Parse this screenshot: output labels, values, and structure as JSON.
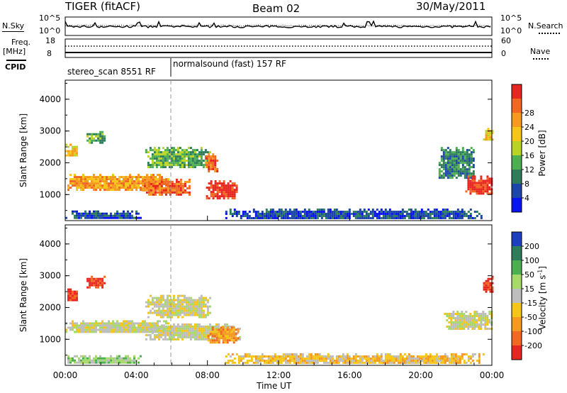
{
  "header": {
    "radar": "TIGER (fitACF)",
    "beam": "Beam 02",
    "date": "30/May/2011"
  },
  "noise_panel": {
    "left_label": "N.Sky",
    "right_label": "N.Search",
    "left_ticks": [
      "10^5",
      "10^0"
    ],
    "right_ticks": [
      "10^5",
      "10^0"
    ]
  },
  "freq_panel": {
    "label_line1": "Freq.",
    "label_line2": "[MHz]",
    "left_ticks": [
      "18",
      "8"
    ],
    "right_ticks": [
      "60",
      "0"
    ],
    "right_label": "Nave"
  },
  "cpid": {
    "label": "CPID",
    "modes": [
      {
        "name": "stereo_scan 8551 RF",
        "start_hour": 0,
        "end_hour": 6.0
      },
      {
        "name": "normalsound (fast) 157 RF",
        "start_hour": 6.0,
        "end_hour": 24
      }
    ]
  },
  "chart_data": [
    {
      "type": "heatmap",
      "parameter": "power",
      "ylabel": "Slant Range [km]",
      "xlabel": "",
      "ylim": [
        180,
        4600
      ],
      "yticks": [
        "1000",
        "2000",
        "3000",
        "4000"
      ],
      "xlim": [
        0,
        24
      ],
      "colorbar": {
        "label": "Power [dB]",
        "ticks": [
          "4",
          "8",
          "12",
          "16",
          "20",
          "24",
          "28"
        ],
        "colors": [
          "#0a14f0",
          "#1c46a8",
          "#2e7d5a",
          "#4caf50",
          "#b9d424",
          "#f5c518",
          "#f59a1e",
          "#f26722",
          "#e6261f"
        ]
      },
      "regions": [
        {
          "t0": 0.0,
          "t1": 5.8,
          "r0": 1150,
          "r1": 1650,
          "level": 6
        },
        {
          "t0": 0.0,
          "t1": 0.7,
          "r0": 2250,
          "r1": 2600,
          "level": 5
        },
        {
          "t0": 1.2,
          "t1": 2.2,
          "r0": 2650,
          "r1": 3000,
          "level": 3
        },
        {
          "t0": 4.3,
          "t1": 7.0,
          "r0": 1000,
          "r1": 1500,
          "level": 7
        },
        {
          "t0": 4.5,
          "t1": 8.1,
          "r0": 1850,
          "r1": 2500,
          "level": 3
        },
        {
          "t0": 7.8,
          "t1": 9.7,
          "r0": 900,
          "r1": 1450,
          "level": 8
        },
        {
          "t0": 7.9,
          "t1": 8.5,
          "r0": 1700,
          "r1": 2300,
          "level": 7
        },
        {
          "t0": 0.0,
          "t1": 4.2,
          "r0": 250,
          "r1": 500,
          "level": 1
        },
        {
          "t0": 9.0,
          "t1": 23.5,
          "r0": 250,
          "r1": 560,
          "level": 1
        },
        {
          "t0": 21.0,
          "t1": 23.0,
          "r0": 1500,
          "r1": 2500,
          "level": 2
        },
        {
          "t0": 22.5,
          "t1": 24.0,
          "r0": 1000,
          "r1": 1600,
          "level": 8
        },
        {
          "t0": 23.5,
          "t1": 24.0,
          "r0": 2700,
          "r1": 3100,
          "level": 5
        }
      ]
    },
    {
      "type": "heatmap",
      "parameter": "velocity",
      "ylabel": "Slant Range [km]",
      "xlabel": "Time UT",
      "ylim": [
        180,
        4600
      ],
      "yticks": [
        "1000",
        "2000",
        "3000",
        "4000"
      ],
      "xlim": [
        0,
        24
      ],
      "xticks": [
        "00:00",
        "04:00",
        "08:00",
        "12:00",
        "16:00",
        "20:00",
        "00:00"
      ],
      "colorbar": {
        "label": "Velocity [m s",
        "label_sup": "-1",
        "label_end": "]",
        "ticks": [
          "-200",
          "-100",
          "-50",
          "-15",
          "15",
          "50",
          "100",
          "200"
        ],
        "colors": [
          "#e6261f",
          "#f26722",
          "#f59a1e",
          "#f5c518",
          "#bdbdbd",
          "#a6d96a",
          "#4caf50",
          "#2e7d5a",
          "#1c3fbf"
        ]
      },
      "regions": [
        {
          "t0": 0.0,
          "t1": 5.8,
          "r0": 1200,
          "r1": 1600,
          "level": 4
        },
        {
          "t0": 0.0,
          "t1": 0.7,
          "r0": 2200,
          "r1": 2600,
          "level": 0
        },
        {
          "t0": 1.2,
          "t1": 2.2,
          "r0": 2650,
          "r1": 3000,
          "level": 0
        },
        {
          "t0": 4.5,
          "t1": 8.2,
          "r0": 1700,
          "r1": 2400,
          "level": 4
        },
        {
          "t0": 4.5,
          "t1": 9.8,
          "r0": 1000,
          "r1": 1500,
          "level": 4
        },
        {
          "t0": 8.0,
          "t1": 9.7,
          "r0": 900,
          "r1": 1400,
          "level": 2
        },
        {
          "t0": 0.0,
          "t1": 4.2,
          "r0": 250,
          "r1": 500,
          "level": 5
        },
        {
          "t0": 9.0,
          "t1": 23.5,
          "r0": 250,
          "r1": 560,
          "level": 3
        },
        {
          "t0": 21.3,
          "t1": 24.0,
          "r0": 1300,
          "r1": 1900,
          "level": 4
        },
        {
          "t0": 23.5,
          "t1": 24.0,
          "r0": 2500,
          "r1": 3000,
          "level": 0
        }
      ]
    }
  ]
}
